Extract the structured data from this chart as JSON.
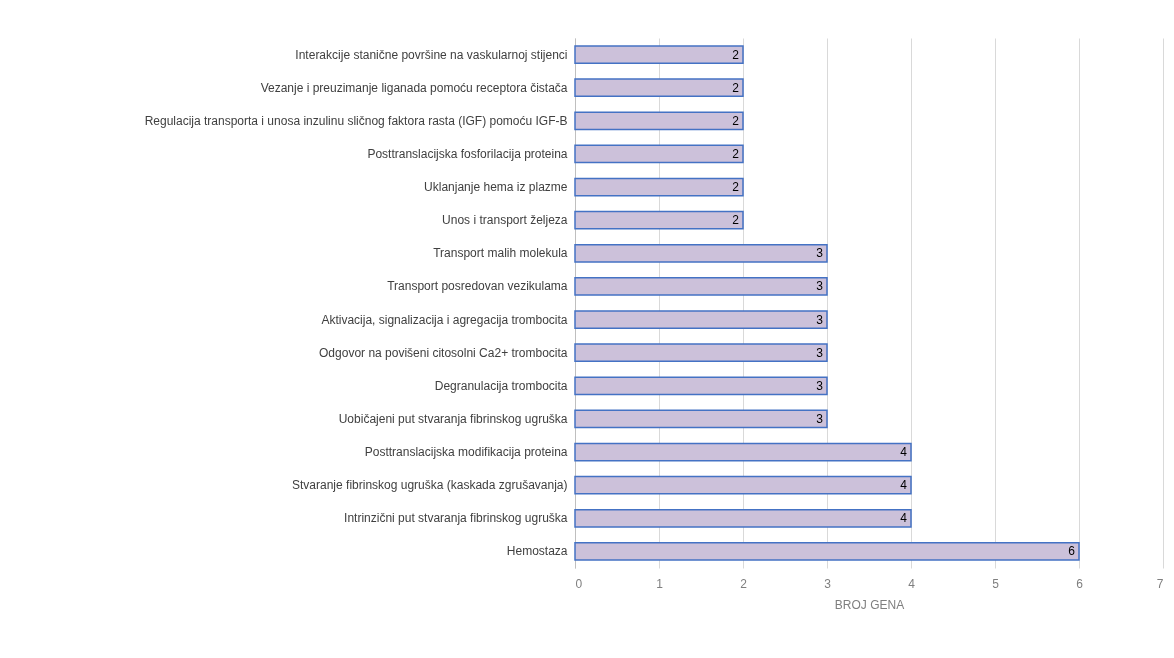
{
  "chart_data": {
    "type": "bar",
    "orientation": "horizontal",
    "xlabel": "BROJ GENA",
    "categories": [
      "Interakcije stanične površine na vaskularnoj stijenci",
      "Vezanje i preuzimanje liganada pomoću receptora čistača",
      "Regulacija transporta i unosa inzulinu sličnog faktora rasta (IGF) pomoću IGF-B",
      "Posttranslacijska fosforilacija proteina",
      "Uklanjanje hema iz plazme",
      "Unos i transport željeza",
      "Transport malih molekula",
      "Transport posredovan vezikulama",
      "Aktivacija, signalizacija i agregacija trombocita",
      "Odgovor na povišeni citosolni Ca2+ trombocita",
      "Degranulacija trombocita",
      "Uobičajeni put stvaranja fibrinskog ugruška",
      "Posttranslacijska modifikacija proteina",
      "Stvaranje fibrinskog ugruška (kaskada zgrušavanja)",
      "Intrinzični put stvaranja fibrinskog ugruška",
      "Hemostaza"
    ],
    "values": [
      2,
      2,
      2,
      2,
      2,
      2,
      3,
      3,
      3,
      3,
      3,
      3,
      4,
      4,
      4,
      6
    ],
    "color": "#ccc1da",
    "xlim": [
      0,
      7
    ],
    "xticks": [
      0,
      1,
      2,
      3,
      4,
      5,
      6,
      7
    ],
    "grid": "x",
    "data_labels": true
  }
}
